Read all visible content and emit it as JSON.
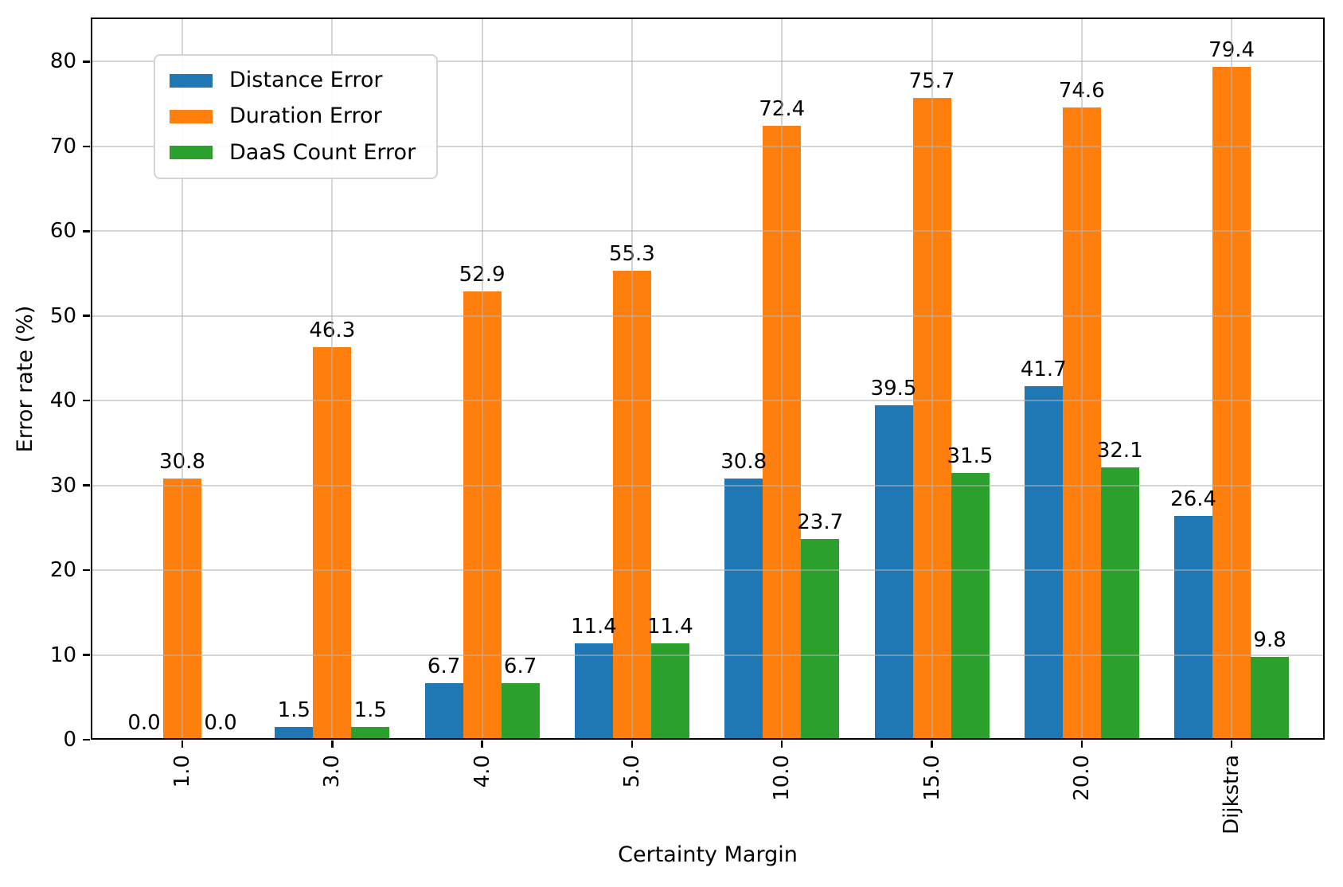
{
  "chart_data": {
    "type": "bar",
    "title": "",
    "xlabel": "Certainty Margin",
    "ylabel": "Error rate (%)",
    "categories": [
      "1.0",
      "3.0",
      "4.0",
      "5.0",
      "10.0",
      "15.0",
      "20.0",
      "Dijkstra"
    ],
    "series": [
      {
        "name": "Distance Error",
        "color": "#1f77b4",
        "values": [
          0.0,
          1.5,
          6.7,
          11.4,
          30.8,
          39.5,
          41.7,
          26.4
        ]
      },
      {
        "name": "Duration Error",
        "color": "#ff7f0e",
        "values": [
          30.8,
          46.3,
          52.9,
          55.3,
          72.4,
          75.7,
          74.6,
          79.4
        ]
      },
      {
        "name": "DaaS Count Error",
        "color": "#2ca02c",
        "values": [
          0.0,
          1.5,
          6.7,
          11.4,
          23.7,
          31.5,
          32.1,
          9.8
        ]
      }
    ],
    "yticks": [
      0,
      10,
      20,
      30,
      40,
      50,
      60,
      70,
      80
    ],
    "ylim": [
      0,
      85.2
    ],
    "grid": true,
    "grid_above_bars": true,
    "legend_position": "upper-left",
    "value_labels": true,
    "value_label_decimals": 1,
    "x_tick_rotation_degrees": 90
  }
}
